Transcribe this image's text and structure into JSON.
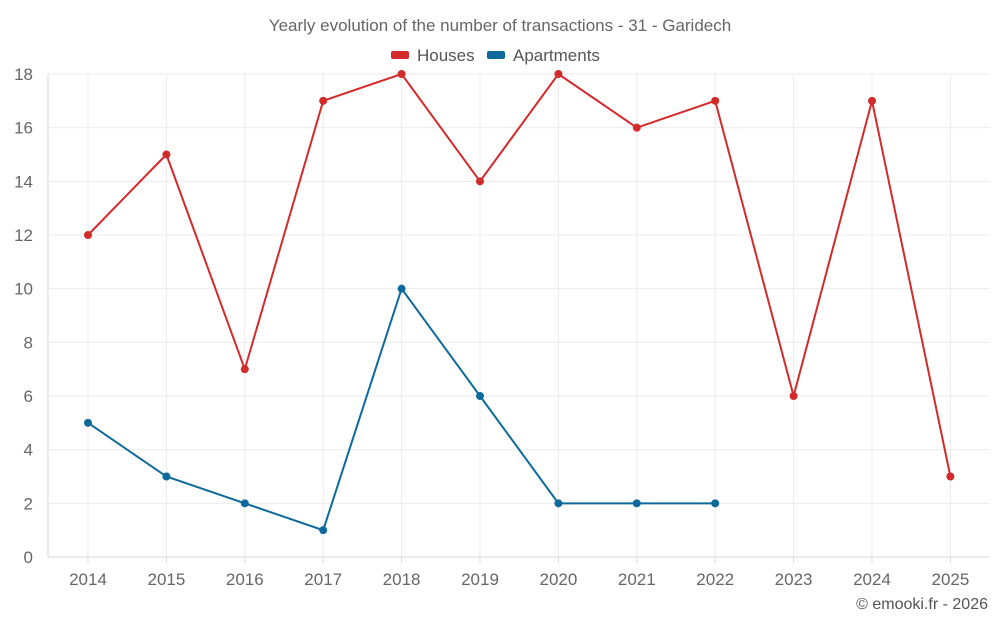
{
  "chart_data": {
    "type": "line",
    "title": "Yearly evolution of the number of transactions - 31 - Garidech",
    "categories": [
      "2014",
      "2015",
      "2016",
      "2017",
      "2018",
      "2019",
      "2020",
      "2021",
      "2022",
      "2023",
      "2024",
      "2025"
    ],
    "series": [
      {
        "name": "Houses",
        "color": "#d32a2a",
        "values": [
          12,
          15,
          7,
          17,
          18,
          14,
          18,
          16,
          17,
          6,
          17,
          3
        ]
      },
      {
        "name": "Apartments",
        "color": "#0e6a9c",
        "values": [
          5,
          3,
          2,
          1,
          10,
          6,
          2,
          2,
          2,
          null,
          null,
          null
        ]
      }
    ],
    "ylim": [
      0,
      18
    ],
    "yticks": [
      0,
      2,
      4,
      6,
      8,
      10,
      12,
      14,
      16,
      18
    ],
    "xlabel": "",
    "ylabel": "",
    "grid": true,
    "legend": "top-center"
  },
  "credit": "© emooki.fr - 2026"
}
